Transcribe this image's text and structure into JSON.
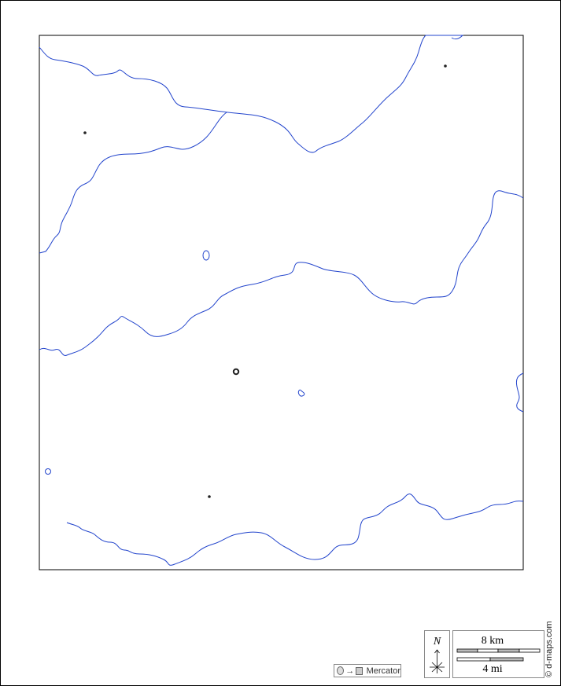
{
  "map": {
    "projection_label": "Mercator",
    "north_label": "N",
    "scale_km_label": "8 km",
    "scale_mi_label": "4 mi",
    "credit": "© d-maps.com",
    "colors": {
      "river": "#2244cc",
      "frame": "#000000",
      "scale_fill": "#bbbbbb"
    }
  }
}
